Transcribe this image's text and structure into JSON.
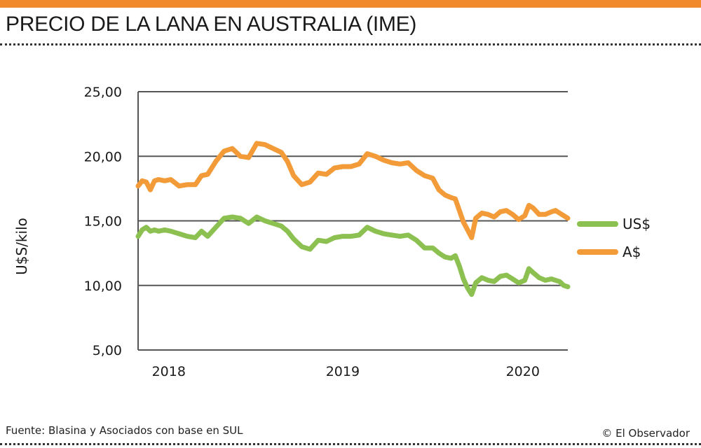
{
  "header": {
    "title": "PRECIO DE LA LANA EN AUSTRALIA (IME)"
  },
  "footer": {
    "source": "Fuente: Blasina y Asociados con base en SUL",
    "credit": "© El Observador"
  },
  "colors": {
    "accent": "#f08a2c",
    "usd": "#8cc152",
    "aud": "#f29b38",
    "grid": "#555555"
  },
  "chart_data": {
    "type": "line",
    "title": "PRECIO DE LA LANA EN AUSTRALIA (IME)",
    "xlabel": "",
    "ylabel": "U$S/kilo",
    "ylim": [
      5,
      25
    ],
    "xlim": [
      2018.0,
      2020.1
    ],
    "yticks": [
      5,
      10,
      15,
      20,
      25
    ],
    "ytick_labels": [
      "5,00",
      "10,00",
      "15,00",
      "20,00",
      "25,00"
    ],
    "xticks": [
      2018.15,
      2019.0,
      2019.88
    ],
    "xtick_labels": [
      "2018",
      "2019",
      "2020"
    ],
    "grid": true,
    "legend_position": "right",
    "series": [
      {
        "name": "US$",
        "color": "#8cc152",
        "x": [
          2018.0,
          2018.02,
          2018.04,
          2018.06,
          2018.08,
          2018.1,
          2018.13,
          2018.16,
          2018.2,
          2018.24,
          2018.28,
          2018.31,
          2018.34,
          2018.38,
          2018.42,
          2018.46,
          2018.5,
          2018.54,
          2018.58,
          2018.62,
          2018.66,
          2018.7,
          2018.73,
          2018.76,
          2018.8,
          2018.84,
          2018.88,
          2018.92,
          2018.96,
          2019.0,
          2019.04,
          2019.08,
          2019.12,
          2019.16,
          2019.2,
          2019.24,
          2019.28,
          2019.32,
          2019.36,
          2019.4,
          2019.44,
          2019.47,
          2019.5,
          2019.53,
          2019.55,
          2019.57,
          2019.59,
          2019.61,
          2019.63,
          2019.65,
          2019.68,
          2019.71,
          2019.74,
          2019.77,
          2019.8,
          2019.83,
          2019.86,
          2019.89,
          2019.91,
          2019.93,
          2019.96,
          2019.99,
          2020.02,
          2020.04,
          2020.06,
          2020.08,
          2020.1
        ],
        "values": [
          13.8,
          14.3,
          14.5,
          14.2,
          14.3,
          14.2,
          14.3,
          14.2,
          14.0,
          13.8,
          13.7,
          14.2,
          13.8,
          14.5,
          15.2,
          15.3,
          15.2,
          14.8,
          15.3,
          15.0,
          14.8,
          14.6,
          14.2,
          13.6,
          13.0,
          12.8,
          13.5,
          13.4,
          13.7,
          13.8,
          13.8,
          13.9,
          14.5,
          14.2,
          14.0,
          13.9,
          13.8,
          13.9,
          13.5,
          12.9,
          12.9,
          12.5,
          12.2,
          12.1,
          12.3,
          11.5,
          10.5,
          9.8,
          9.3,
          10.2,
          10.6,
          10.4,
          10.3,
          10.7,
          10.8,
          10.5,
          10.2,
          10.4,
          11.3,
          11.0,
          10.6,
          10.4,
          10.5,
          10.4,
          10.3,
          10.0,
          9.9
        ]
      },
      {
        "name": "A$",
        "color": "#f29b38",
        "x": [
          2018.0,
          2018.02,
          2018.04,
          2018.06,
          2018.08,
          2018.1,
          2018.13,
          2018.16,
          2018.2,
          2018.24,
          2018.28,
          2018.31,
          2018.34,
          2018.38,
          2018.42,
          2018.46,
          2018.5,
          2018.54,
          2018.58,
          2018.62,
          2018.66,
          2018.7,
          2018.73,
          2018.76,
          2018.8,
          2018.84,
          2018.88,
          2018.92,
          2018.96,
          2019.0,
          2019.04,
          2019.08,
          2019.12,
          2019.16,
          2019.2,
          2019.24,
          2019.28,
          2019.32,
          2019.36,
          2019.4,
          2019.44,
          2019.47,
          2019.5,
          2019.53,
          2019.55,
          2019.57,
          2019.59,
          2019.61,
          2019.63,
          2019.65,
          2019.68,
          2019.71,
          2019.74,
          2019.77,
          2019.8,
          2019.83,
          2019.86,
          2019.89,
          2019.91,
          2019.93,
          2019.96,
          2019.99,
          2020.02,
          2020.04,
          2020.06,
          2020.08,
          2020.1
        ],
        "values": [
          17.7,
          18.1,
          18.0,
          17.4,
          18.1,
          18.2,
          18.1,
          18.2,
          17.7,
          17.8,
          17.8,
          18.5,
          18.6,
          19.6,
          20.4,
          20.6,
          20.0,
          19.9,
          21.0,
          20.9,
          20.6,
          20.3,
          19.6,
          18.5,
          17.8,
          18.0,
          18.7,
          18.6,
          19.1,
          19.2,
          19.2,
          19.4,
          20.2,
          20.0,
          19.7,
          19.5,
          19.4,
          19.5,
          18.9,
          18.5,
          18.3,
          17.4,
          17.0,
          16.8,
          16.7,
          15.8,
          14.9,
          14.3,
          13.7,
          15.2,
          15.6,
          15.5,
          15.3,
          15.7,
          15.8,
          15.5,
          15.1,
          15.4,
          16.2,
          16.0,
          15.5,
          15.5,
          15.7,
          15.8,
          15.6,
          15.4,
          15.2
        ]
      }
    ]
  }
}
